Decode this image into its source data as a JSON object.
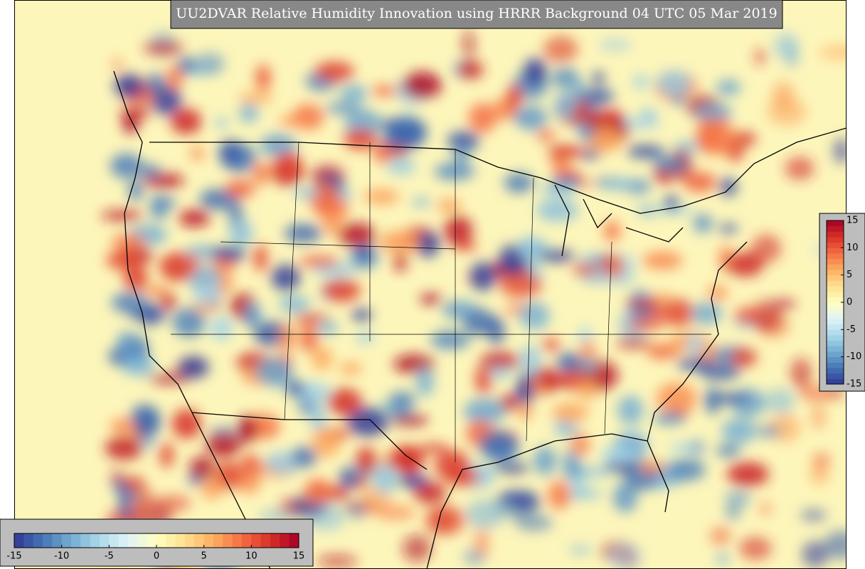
{
  "title": "UU2DVAR Relative Humidity Innovation using HRRR Background 04 UTC 05 Mar 2019",
  "colorbars": [
    {
      "orientation": "horizontal",
      "lim": [
        -15,
        15
      ],
      "ticks": [
        -15,
        -10,
        -5,
        0,
        5,
        10,
        15
      ]
    },
    {
      "orientation": "vertical",
      "lim": [
        -15,
        15
      ],
      "ticks": [
        15,
        10,
        5,
        0,
        -5,
        -10,
        -15
      ]
    }
  ]
}
